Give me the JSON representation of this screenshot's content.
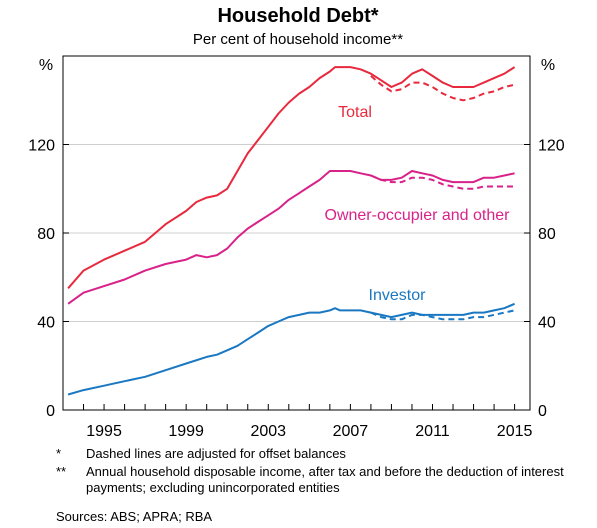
{
  "chart_data": {
    "type": "line",
    "title": "Household Debt*",
    "subtitle": "Per cent of household income**",
    "ylabel_left": "%",
    "ylabel_right": "%",
    "ylim": [
      0,
      160
    ],
    "xlim": [
      1993.0,
      2015.75
    ],
    "grid": true,
    "y_ticks": [
      0,
      40,
      80,
      120
    ],
    "y_tick_labels": [
      "0",
      "40",
      "80",
      "120"
    ],
    "x_ticks": [
      1995,
      1999,
      2003,
      2007,
      2011,
      2015
    ],
    "x_tick_labels": [
      "1995",
      "1999",
      "2003",
      "2007",
      "2011",
      "2015"
    ],
    "colors": {
      "total": "#e8293d",
      "owner": "#d8228a",
      "investor": "#1a78c2",
      "grid": "#cfcfcf"
    },
    "series": [
      {
        "name": "Total",
        "key": "total",
        "style": "solid",
        "x": [
          1993.25,
          1994,
          1995,
          1996,
          1997,
          1998,
          1999,
          1999.5,
          2000,
          2000.5,
          2001,
          2001.5,
          2002,
          2002.5,
          2003,
          2003.5,
          2004,
          2004.5,
          2005,
          2005.5,
          2006,
          2006.25,
          2006.5,
          2007,
          2007.5,
          2008,
          2008.5,
          2009,
          2009.5,
          2010,
          2010.5,
          2011,
          2011.5,
          2012,
          2012.5,
          2013,
          2013.5,
          2014,
          2014.5,
          2015
        ],
        "y": [
          55,
          63,
          68,
          72,
          76,
          84,
          90,
          94,
          96,
          97,
          100,
          108,
          116,
          122,
          128,
          134,
          139,
          143,
          146,
          150,
          153,
          155,
          155,
          155,
          154,
          152,
          149,
          146,
          148,
          152,
          154,
          151,
          148,
          146,
          146,
          146,
          148,
          150,
          152,
          155
        ]
      },
      {
        "name": "Total",
        "key": "total",
        "style": "dashed",
        "x": [
          2008,
          2008.5,
          2009,
          2009.5,
          2010,
          2010.5,
          2011,
          2011.5,
          2012,
          2012.5,
          2013,
          2013.5,
          2014,
          2014.5,
          2015
        ],
        "y": [
          151,
          147,
          144,
          145,
          148,
          148,
          146,
          143,
          141,
          140,
          141,
          143,
          144,
          146,
          147
        ]
      },
      {
        "name": "Owner-occupier and other",
        "key": "owner",
        "style": "solid",
        "x": [
          1993.25,
          1994,
          1995,
          1996,
          1997,
          1998,
          1999,
          1999.5,
          2000,
          2000.5,
          2001,
          2001.5,
          2002,
          2002.5,
          2003,
          2003.5,
          2004,
          2004.5,
          2005,
          2005.5,
          2006,
          2006.5,
          2007,
          2007.5,
          2008,
          2008.5,
          2009,
          2009.5,
          2010,
          2010.5,
          2011,
          2011.5,
          2012,
          2012.5,
          2013,
          2013.5,
          2014,
          2014.5,
          2015
        ],
        "y": [
          48,
          53,
          56,
          59,
          63,
          66,
          68,
          70,
          69,
          70,
          73,
          78,
          82,
          85,
          88,
          91,
          95,
          98,
          101,
          104,
          108,
          108,
          108,
          107,
          106,
          104,
          104,
          105,
          108,
          107,
          106,
          104,
          103,
          103,
          103,
          105,
          105,
          106,
          107
        ]
      },
      {
        "name": "Owner-occupier and other",
        "key": "owner",
        "style": "dashed",
        "x": [
          2008,
          2008.5,
          2009,
          2009.5,
          2010,
          2010.5,
          2011,
          2011.5,
          2012,
          2012.5,
          2013,
          2013.5,
          2014,
          2014.5,
          2015
        ],
        "y": [
          106,
          104,
          103,
          103,
          105,
          105,
          104,
          102,
          101,
          100,
          100,
          101,
          101,
          101,
          101
        ]
      },
      {
        "name": "Investor",
        "key": "investor",
        "style": "solid",
        "x": [
          1993.25,
          1994,
          1995,
          1996,
          1997,
          1998,
          1999,
          2000,
          2000.5,
          2001,
          2001.5,
          2002,
          2002.5,
          2003,
          2003.5,
          2004,
          2004.5,
          2005,
          2005.5,
          2006,
          2006.25,
          2006.5,
          2007,
          2007.5,
          2008,
          2008.5,
          2009,
          2009.5,
          2010,
          2010.5,
          2011,
          2011.5,
          2012,
          2012.5,
          2013,
          2013.5,
          2014,
          2014.5,
          2015
        ],
        "y": [
          7,
          9,
          11,
          13,
          15,
          18,
          21,
          24,
          25,
          27,
          29,
          32,
          35,
          38,
          40,
          42,
          43,
          44,
          44,
          45,
          46,
          45,
          45,
          45,
          44,
          43,
          42,
          43,
          44,
          43,
          43,
          43,
          43,
          43,
          44,
          44,
          45,
          46,
          48
        ]
      },
      {
        "name": "Investor",
        "key": "investor",
        "style": "dashed",
        "x": [
          2008,
          2008.5,
          2009,
          2009.5,
          2010,
          2010.5,
          2011,
          2011.5,
          2012,
          2012.5,
          2013,
          2013.5,
          2014,
          2014.5,
          2015
        ],
        "y": [
          44,
          42,
          41,
          41,
          43,
          43,
          42,
          41,
          41,
          41,
          42,
          42,
          43,
          44,
          45
        ]
      }
    ],
    "annotations": [
      {
        "text": "Total",
        "key": "total"
      },
      {
        "text": "Owner-occupier and other",
        "key": "owner"
      },
      {
        "text": "Investor",
        "key": "investor"
      }
    ]
  },
  "notes": [
    {
      "mark": "*",
      "text": "Dashed lines are adjusted for offset balances"
    },
    {
      "mark": "**",
      "text": "Annual household disposable income, after tax and before the deduction of interest payments; excluding unincorporated entities"
    }
  ],
  "sources": "Sources:   ABS; APRA; RBA"
}
